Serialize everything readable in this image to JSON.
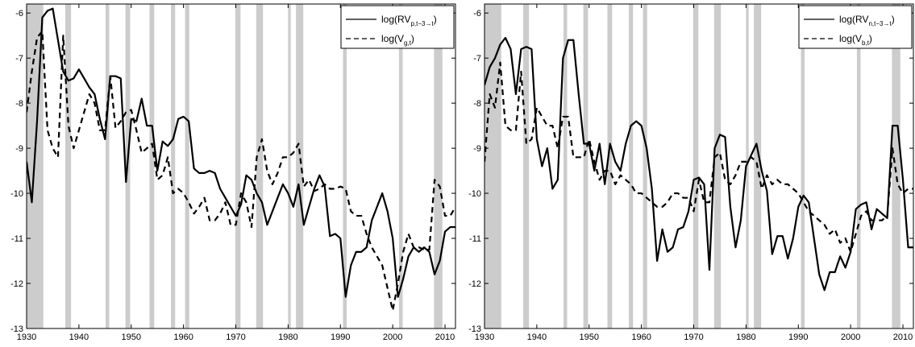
{
  "chart_data": [
    {
      "type": "line",
      "xlim": [
        1930,
        2012
      ],
      "ylim": [
        -13,
        -5.8
      ],
      "x_ticks": [
        1930,
        1940,
        1950,
        1960,
        1970,
        1980,
        1990,
        2000,
        2010
      ],
      "y_ticks": [
        -13,
        -12,
        -11,
        -10,
        -9,
        -8,
        -7,
        -6
      ],
      "grid": false,
      "legend_position": "top-right",
      "recessions": [
        [
          1929.7,
          1933.2
        ],
        [
          1937.4,
          1938.5
        ],
        [
          1945.1,
          1945.8
        ],
        [
          1948.9,
          1949.8
        ],
        [
          1953.5,
          1954.4
        ],
        [
          1957.6,
          1958.4
        ],
        [
          1960.3,
          1961.1
        ],
        [
          1969.9,
          1970.9
        ],
        [
          1973.9,
          1975.2
        ],
        [
          1980.0,
          1980.5
        ],
        [
          1981.5,
          1982.9
        ],
        [
          1990.5,
          1991.2
        ],
        [
          2001.2,
          2001.9
        ],
        [
          2007.9,
          2009.5
        ]
      ],
      "series": [
        {
          "name_main": "log(RV",
          "name_sub": "p,t−3→t",
          "name_close": ")",
          "style": "solid",
          "x": [
            1930,
            1931,
            1932,
            1933,
            1934,
            1935,
            1936,
            1937,
            1938,
            1939,
            1940,
            1941,
            1942,
            1943,
            1944,
            1945,
            1946,
            1947,
            1948,
            1949,
            1950,
            1951,
            1952,
            1953,
            1954,
            1955,
            1956,
            1957,
            1958,
            1959,
            1960,
            1961,
            1962,
            1963,
            1964,
            1965,
            1966,
            1967,
            1968,
            1969,
            1970,
            1971,
            1972,
            1973,
            1974,
            1975,
            1976,
            1977,
            1978,
            1979,
            1980,
            1981,
            1982,
            1983,
            1984,
            1985,
            1986,
            1987,
            1988,
            1989,
            1990,
            1991,
            1992,
            1993,
            1994,
            1995,
            1996,
            1997,
            1998,
            1999,
            2000,
            2001,
            2002,
            2003,
            2004,
            2005,
            2006,
            2007,
            2008,
            2009,
            2010,
            2011,
            2012
          ],
          "y": [
            -9.3,
            -10.2,
            -8.4,
            -6.1,
            -5.95,
            -5.9,
            -6.6,
            -7.3,
            -7.5,
            -7.45,
            -7.25,
            -7.45,
            -7.65,
            -7.8,
            -8.35,
            -8.8,
            -7.4,
            -7.4,
            -7.45,
            -9.75,
            -8.35,
            -8.4,
            -7.9,
            -8.5,
            -8.5,
            -9.5,
            -8.85,
            -8.95,
            -8.8,
            -8.35,
            -8.3,
            -8.4,
            -9.45,
            -9.55,
            -9.55,
            -9.5,
            -9.55,
            -9.9,
            -10.1,
            -10.3,
            -10.5,
            -10.25,
            -9.6,
            -9.7,
            -10.0,
            -10.2,
            -10.7,
            -10.4,
            -10.1,
            -9.8,
            -10.0,
            -10.3,
            -9.8,
            -10.7,
            -10.3,
            -9.9,
            -9.6,
            -9.85,
            -10.95,
            -10.9,
            -11.0,
            -12.3,
            -11.6,
            -11.3,
            -11.3,
            -11.2,
            -10.6,
            -10.3,
            -10.0,
            -10.4,
            -11.0,
            -12.3,
            -11.9,
            -11.4,
            -11.2,
            -11.3,
            -11.2,
            -11.3,
            -11.8,
            -11.5,
            -10.85,
            -10.75,
            -10.75
          ]
        },
        {
          "name_main": "log(V",
          "name_sub": "g,t",
          "name_close": ")",
          "style": "dashed",
          "x": [
            1930,
            1931,
            1932,
            1933,
            1934,
            1935,
            1936,
            1937,
            1938,
            1939,
            1940,
            1941,
            1942,
            1943,
            1944,
            1945,
            1946,
            1947,
            1948,
            1949,
            1950,
            1951,
            1952,
            1953,
            1954,
            1955,
            1956,
            1957,
            1958,
            1959,
            1960,
            1961,
            1962,
            1963,
            1964,
            1965,
            1966,
            1967,
            1968,
            1969,
            1970,
            1971,
            1972,
            1973,
            1974,
            1975,
            1976,
            1977,
            1978,
            1979,
            1980,
            1981,
            1982,
            1983,
            1984,
            1985,
            1986,
            1987,
            1988,
            1989,
            1990,
            1991,
            1992,
            1993,
            1994,
            1995,
            1996,
            1997,
            1998,
            1999,
            2000,
            2001,
            2002,
            2003,
            2004,
            2005,
            2006,
            2007,
            2008,
            2009,
            2010,
            2011,
            2012
          ],
          "y": [
            -8.2,
            -7.3,
            -6.55,
            -6.4,
            -8.6,
            -9.0,
            -9.2,
            -6.5,
            -8.5,
            -9.0,
            -8.6,
            -8.2,
            -7.8,
            -8.0,
            -8.6,
            -8.6,
            -7.4,
            -8.55,
            -8.4,
            -8.2,
            -8.15,
            -8.6,
            -9.1,
            -9.0,
            -8.9,
            -9.7,
            -9.6,
            -9.2,
            -10.0,
            -9.9,
            -10.0,
            -10.2,
            -10.45,
            -10.3,
            -10.1,
            -10.6,
            -10.6,
            -10.45,
            -10.2,
            -10.7,
            -10.7,
            -10.0,
            -10.2,
            -10.75,
            -9.2,
            -8.8,
            -9.5,
            -9.8,
            -9.55,
            -9.2,
            -9.2,
            -9.1,
            -8.9,
            -9.85,
            -9.7,
            -9.95,
            -9.9,
            -9.8,
            -9.9,
            -9.9,
            -9.85,
            -9.9,
            -10.4,
            -10.5,
            -10.5,
            -10.9,
            -11.2,
            -11.4,
            -11.6,
            -12.1,
            -12.6,
            -12.0,
            -11.3,
            -10.9,
            -11.2,
            -11.2,
            -11.25,
            -11.25,
            -9.7,
            -9.85,
            -10.5,
            -10.5,
            -10.3
          ]
        }
      ]
    },
    {
      "type": "line",
      "xlim": [
        1930,
        2012
      ],
      "ylim": [
        -13,
        -5.8
      ],
      "x_ticks": [
        1930,
        1940,
        1950,
        1960,
        1970,
        1980,
        1990,
        2000,
        2010
      ],
      "y_ticks": [
        -13,
        -12,
        -11,
        -10,
        -9,
        -8,
        -7,
        -6
      ],
      "grid": false,
      "legend_position": "top-right",
      "recessions": [
        [
          1929.7,
          1933.2
        ],
        [
          1937.4,
          1938.5
        ],
        [
          1945.1,
          1945.8
        ],
        [
          1948.9,
          1949.8
        ],
        [
          1953.5,
          1954.4
        ],
        [
          1957.6,
          1958.4
        ],
        [
          1960.3,
          1961.1
        ],
        [
          1969.9,
          1970.9
        ],
        [
          1973.9,
          1975.2
        ],
        [
          1980.0,
          1980.5
        ],
        [
          1981.5,
          1982.9
        ],
        [
          1990.5,
          1991.2
        ],
        [
          2001.2,
          2001.9
        ],
        [
          2007.9,
          2009.5
        ]
      ],
      "series": [
        {
          "name_main": "log(RV",
          "name_sub": "n,t−3→t",
          "name_close": ")",
          "style": "solid",
          "x": [
            1930,
            1931,
            1932,
            1933,
            1934,
            1935,
            1936,
            1937,
            1938,
            1939,
            1940,
            1941,
            1942,
            1943,
            1944,
            1945,
            1946,
            1947,
            1948,
            1949,
            1950,
            1951,
            1952,
            1953,
            1954,
            1955,
            1956,
            1957,
            1958,
            1959,
            1960,
            1961,
            1962,
            1963,
            1964,
            1965,
            1966,
            1967,
            1968,
            1969,
            1970,
            1971,
            1972,
            1973,
            1974,
            1975,
            1976,
            1977,
            1978,
            1979,
            1980,
            1981,
            1982,
            1983,
            1984,
            1985,
            1986,
            1987,
            1988,
            1989,
            1990,
            1991,
            1992,
            1993,
            1994,
            1995,
            1996,
            1997,
            1998,
            1999,
            2000,
            2001,
            2002,
            2003,
            2004,
            2005,
            2006,
            2007,
            2008,
            2009,
            2010,
            2011,
            2012
          ],
          "y": [
            -7.6,
            -7.2,
            -7.0,
            -6.7,
            -6.55,
            -6.8,
            -7.8,
            -6.8,
            -6.75,
            -6.8,
            -8.8,
            -9.4,
            -9.0,
            -9.9,
            -9.7,
            -7.0,
            -6.6,
            -6.6,
            -7.8,
            -8.9,
            -8.9,
            -9.5,
            -8.9,
            -9.8,
            -8.9,
            -9.3,
            -9.5,
            -8.9,
            -8.5,
            -8.4,
            -8.5,
            -9.0,
            -9.9,
            -11.5,
            -10.8,
            -11.3,
            -11.2,
            -10.8,
            -10.75,
            -10.4,
            -9.7,
            -9.65,
            -9.8,
            -11.7,
            -9.0,
            -8.7,
            -8.75,
            -10.3,
            -11.2,
            -10.6,
            -9.4,
            -9.15,
            -8.9,
            -9.5,
            -9.95,
            -11.35,
            -10.95,
            -10.95,
            -11.45,
            -11.0,
            -10.3,
            -10.05,
            -10.2,
            -11.0,
            -11.8,
            -12.15,
            -11.75,
            -11.75,
            -11.4,
            -11.65,
            -11.3,
            -10.35,
            -10.25,
            -10.2,
            -10.8,
            -10.35,
            -10.45,
            -10.55,
            -8.5,
            -8.5,
            -9.7,
            -11.2,
            -11.2
          ]
        },
        {
          "name_main": "log(V",
          "name_sub": "b,t",
          "name_close": ")",
          "style": "dashed",
          "x": [
            1930,
            1931,
            1932,
            1933,
            1934,
            1935,
            1936,
            1937,
            1938,
            1939,
            1940,
            1941,
            1942,
            1943,
            1944,
            1945,
            1946,
            1947,
            1948,
            1949,
            1950,
            1951,
            1952,
            1953,
            1954,
            1955,
            1956,
            1957,
            1958,
            1959,
            1960,
            1961,
            1962,
            1963,
            1964,
            1965,
            1966,
            1967,
            1968,
            1969,
            1970,
            1971,
            1972,
            1973,
            1974,
            1975,
            1976,
            1977,
            1978,
            1979,
            1980,
            1981,
            1982,
            1983,
            1984,
            1985,
            1986,
            1987,
            1988,
            1989,
            1990,
            1991,
            1992,
            1993,
            1994,
            1995,
            1996,
            1997,
            1998,
            1999,
            2000,
            2001,
            2002,
            2003,
            2004,
            2005,
            2006,
            2007,
            2008,
            2009,
            2010,
            2011,
            2012
          ],
          "y": [
            -9.3,
            -7.8,
            -8.1,
            -7.1,
            -8.5,
            -8.6,
            -8.6,
            -7.3,
            -8.9,
            -8.8,
            -8.1,
            -8.3,
            -8.5,
            -8.5,
            -9.0,
            -8.3,
            -8.3,
            -9.2,
            -9.2,
            -9.2,
            -8.8,
            -9.3,
            -9.7,
            -9.5,
            -9.5,
            -9.8,
            -9.6,
            -9.7,
            -9.8,
            -10.0,
            -10.0,
            -10.1,
            -10.2,
            -10.3,
            -10.3,
            -10.2,
            -10.0,
            -10.0,
            -10.1,
            -10.1,
            -10.4,
            -9.7,
            -10.2,
            -10.2,
            -9.2,
            -9.1,
            -9.7,
            -9.8,
            -9.6,
            -9.3,
            -9.3,
            -9.2,
            -9.3,
            -9.9,
            -9.6,
            -9.8,
            -9.7,
            -9.8,
            -9.8,
            -9.9,
            -10.0,
            -10.2,
            -10.4,
            -10.5,
            -10.6,
            -10.7,
            -10.9,
            -10.8,
            -11.1,
            -11.0,
            -11.3,
            -10.9,
            -10.5,
            -10.4,
            -10.6,
            -10.6,
            -10.6,
            -10.5,
            -9.0,
            -9.8,
            -10.0,
            -9.9,
            -9.9
          ]
        }
      ]
    }
  ],
  "colors": {
    "recession_band": "#cccccc",
    "line": "#000000",
    "axis": "#000000",
    "background": "#ffffff"
  }
}
